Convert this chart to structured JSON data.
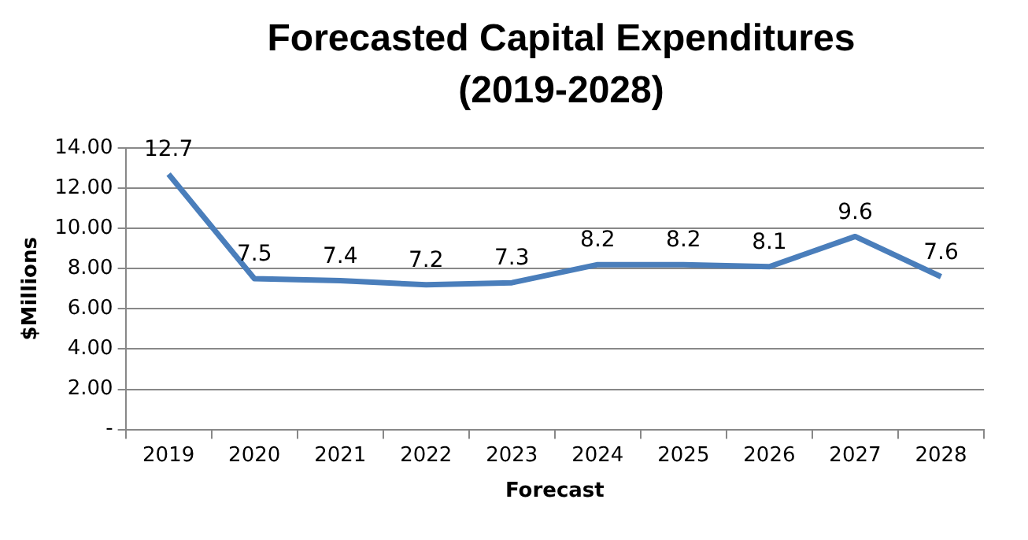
{
  "chart_data": {
    "type": "line",
    "title": "Forecasted Capital Expenditures (2019-2028)",
    "xlabel": "Forecast",
    "ylabel": "$Millions",
    "categories": [
      "2019",
      "2020",
      "2021",
      "2022",
      "2023",
      "2024",
      "2025",
      "2026",
      "2027",
      "2028"
    ],
    "series": [
      {
        "color": "#4a7ebb",
        "values": [
          12.7,
          7.5,
          7.4,
          7.2,
          7.3,
          8.2,
          8.2,
          8.1,
          9.6,
          7.6
        ]
      }
    ],
    "ylim": [
      0,
      14
    ],
    "yticks": [
      {
        "value": 0,
        "label": "-"
      },
      {
        "value": 2,
        "label": "2.00"
      },
      {
        "value": 4,
        "label": "4.00"
      },
      {
        "value": 6,
        "label": "6.00"
      },
      {
        "value": 8,
        "label": "8.00"
      },
      {
        "value": 10,
        "label": "10.00"
      },
      {
        "value": 12,
        "label": "12.00"
      },
      {
        "value": 14,
        "label": "14.00"
      }
    ],
    "grid": "y",
    "legend": false,
    "marker": "none",
    "line_style": "solid",
    "data_labels": true
  }
}
